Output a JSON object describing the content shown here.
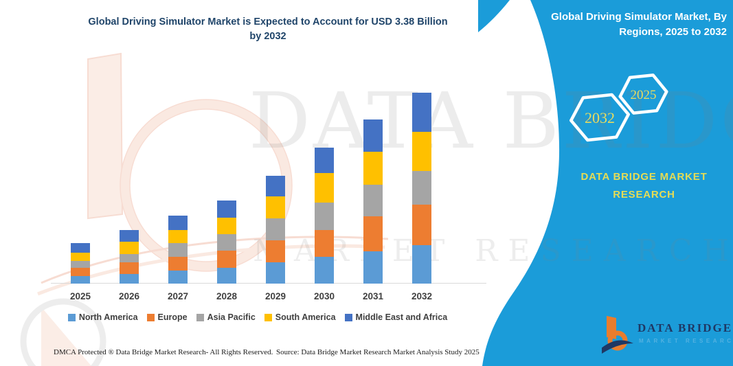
{
  "left_title": "Global Driving Simulator Market is Expected to Account for USD 3.38 Billion\nby 2032",
  "watermark": {
    "line1": "DATA BRIDGE",
    "line2": "MARKET RESEARCH"
  },
  "panel": {
    "title": "Global Driving Simulator Market, By\nRegions, 2025 to 2032",
    "background_color": "#1B9CD9",
    "hexagons": [
      {
        "label": "2032"
      },
      {
        "label": "2025"
      }
    ],
    "brand": "DATA BRIDGE MARKET RESEARCH",
    "logo": {
      "title": "DATA BRIDGE",
      "subtitle": "MARKET RESEARCH"
    }
  },
  "chart_data": {
    "type": "bar",
    "stacked": true,
    "title": "Global Driving Simulator Market is Expected to Account for USD 3.38 Billion by 2032",
    "unit": "USD Billion",
    "categories": [
      "2025",
      "2026",
      "2027",
      "2028",
      "2029",
      "2030",
      "2031",
      "2032"
    ],
    "series": [
      {
        "name": "North America",
        "color": "#5B9BD5",
        "values": [
          0.13,
          0.17,
          0.23,
          0.28,
          0.38,
          0.48,
          0.57,
          0.68
        ]
      },
      {
        "name": "Europe",
        "color": "#ED7D31",
        "values": [
          0.15,
          0.21,
          0.24,
          0.3,
          0.39,
          0.48,
          0.62,
          0.72
        ]
      },
      {
        "name": "Asia Pacific",
        "color": "#A5A5A5",
        "values": [
          0.12,
          0.15,
          0.24,
          0.29,
          0.39,
          0.49,
          0.56,
          0.6
        ]
      },
      {
        "name": "South America",
        "color": "#FFC000",
        "values": [
          0.15,
          0.22,
          0.23,
          0.29,
          0.39,
          0.52,
          0.58,
          0.69
        ]
      },
      {
        "name": "Middle East and Africa",
        "color": "#4472C4",
        "values": [
          0.17,
          0.21,
          0.26,
          0.3,
          0.37,
          0.45,
          0.57,
          0.69
        ]
      }
    ],
    "totals": [
      0.72,
      0.96,
      1.2,
      1.46,
      1.92,
      2.42,
      2.9,
      3.38
    ],
    "xlabel": "",
    "ylabel": "",
    "ylim": [
      0,
      3.5
    ],
    "grid": false,
    "legend_position": "bottom"
  },
  "footer": {
    "left": "DMCA Protected ® Data Bridge Market Research-  All Rights Reserved.",
    "right": "Source: Data Bridge Market Research  Market Analysis Study 2025"
  }
}
